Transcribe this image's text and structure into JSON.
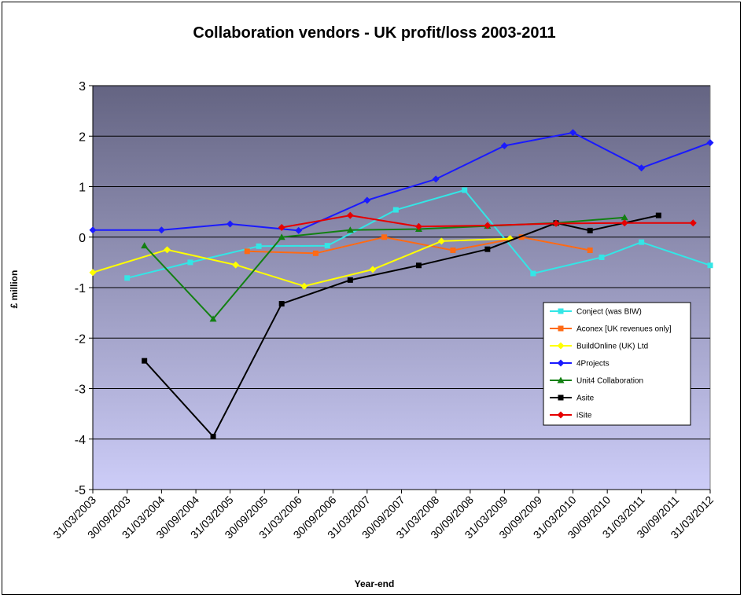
{
  "chart_data": {
    "type": "line",
    "title": "Collaboration vendors - UK profit/loss 2003-2011",
    "xlabel": "Year-end",
    "ylabel": "£ million",
    "ylim": [
      -5,
      3
    ],
    "yticks": [
      3,
      2,
      1,
      0,
      -1,
      -2,
      -3,
      -4,
      -5
    ],
    "x_range": [
      "31/03/2003",
      "31/03/2012"
    ],
    "x_ticks": [
      "31/03/2003",
      "30/09/2003",
      "31/03/2004",
      "30/09/2004",
      "31/03/2005",
      "30/09/2005",
      "31/03/2006",
      "30/09/2006",
      "31/03/2007",
      "30/09/2007",
      "31/03/2008",
      "30/09/2008",
      "31/03/2009",
      "30/09/2009",
      "31/03/2010",
      "30/09/2010",
      "31/03/2011",
      "30/09/2011",
      "31/03/2012"
    ],
    "grid": true,
    "legend_position": "right",
    "series": [
      {
        "name": "Conject (was BIW)",
        "color": "#33e6e6",
        "marker": "square",
        "points": [
          {
            "x": "30/09/2003",
            "y": -0.81
          },
          {
            "x": "31/08/2004",
            "y": -0.5
          },
          {
            "x": "31/08/2005",
            "y": -0.18
          },
          {
            "x": "31/08/2006",
            "y": -0.17
          },
          {
            "x": "31/08/2007",
            "y": 0.54
          },
          {
            "x": "31/08/2008",
            "y": 0.93
          },
          {
            "x": "31/08/2009",
            "y": -0.72
          },
          {
            "x": "31/08/2010",
            "y": -0.4
          },
          {
            "x": "31/03/2011",
            "y": -0.1
          },
          {
            "x": "31/03/2012",
            "y": -0.56
          }
        ]
      },
      {
        "name": "Aconex [UK revenues only]",
        "color": "#ff6a14",
        "marker": "square",
        "points": [
          {
            "x": "30/06/2005",
            "y": -0.28
          },
          {
            "x": "30/06/2006",
            "y": -0.32
          },
          {
            "x": "30/06/2007",
            "y": 0.0
          },
          {
            "x": "30/06/2008",
            "y": -0.26
          },
          {
            "x": "30/06/2009",
            "y": 0.0
          },
          {
            "x": "30/06/2010",
            "y": -0.26
          }
        ]
      },
      {
        "name": "BuildOnline (UK) Ltd",
        "color": "#ffff00",
        "marker": "diamond",
        "points": [
          {
            "x": "31/03/2003",
            "y": -0.7
          },
          {
            "x": "30/04/2004",
            "y": -0.25
          },
          {
            "x": "30/04/2005",
            "y": -0.55
          },
          {
            "x": "30/04/2006",
            "y": -0.97
          },
          {
            "x": "30/04/2007",
            "y": -0.64
          },
          {
            "x": "30/04/2008",
            "y": -0.08
          },
          {
            "x": "30/04/2009",
            "y": -0.03
          }
        ]
      },
      {
        "name": "4Projects",
        "color": "#1a1aff",
        "marker": "diamond",
        "points": [
          {
            "x": "31/03/2003",
            "y": 0.14
          },
          {
            "x": "31/03/2004",
            "y": 0.14
          },
          {
            "x": "31/03/2005",
            "y": 0.26
          },
          {
            "x": "31/03/2006",
            "y": 0.13
          },
          {
            "x": "31/03/2007",
            "y": 0.73
          },
          {
            "x": "31/03/2008",
            "y": 1.15
          },
          {
            "x": "31/03/2009",
            "y": 1.81
          },
          {
            "x": "31/03/2010",
            "y": 2.07
          },
          {
            "x": "31/03/2011",
            "y": 1.37
          },
          {
            "x": "31/03/2012",
            "y": 1.87
          }
        ]
      },
      {
        "name": "Unit4 Collaboration",
        "color": "#128012",
        "marker": "triangle",
        "points": [
          {
            "x": "31/12/2003",
            "y": -0.17
          },
          {
            "x": "31/12/2004",
            "y": -1.62
          },
          {
            "x": "31/12/2005",
            "y": 0.0
          },
          {
            "x": "31/12/2006",
            "y": 0.14
          },
          {
            "x": "31/12/2007",
            "y": 0.16
          },
          {
            "x": "31/12/2008",
            "y": 0.22
          },
          {
            "x": "31/12/2009",
            "y": 0.28
          },
          {
            "x": "31/12/2010",
            "y": 0.39
          }
        ]
      },
      {
        "name": "Asite",
        "color": "#000000",
        "marker": "square",
        "points": [
          {
            "x": "31/12/2003",
            "y": -2.45
          },
          {
            "x": "31/12/2004",
            "y": -3.95
          },
          {
            "x": "31/12/2005",
            "y": -1.32
          },
          {
            "x": "31/12/2006",
            "y": -0.85
          },
          {
            "x": "31/12/2007",
            "y": -0.56
          },
          {
            "x": "31/12/2008",
            "y": -0.24
          },
          {
            "x": "31/12/2009",
            "y": 0.28
          },
          {
            "x": "30/06/2010",
            "y": 0.13
          },
          {
            "x": "30/06/2011",
            "y": 0.43
          }
        ]
      },
      {
        "name": "iSite",
        "color": "#e60000",
        "marker": "diamond",
        "points": [
          {
            "x": "31/12/2005",
            "y": 0.19
          },
          {
            "x": "31/12/2006",
            "y": 0.43
          },
          {
            "x": "31/12/2007",
            "y": 0.21
          },
          {
            "x": "31/12/2008",
            "y": 0.23
          },
          {
            "x": "31/12/2009",
            "y": 0.27
          },
          {
            "x": "31/12/2010",
            "y": 0.28
          },
          {
            "x": "31/12/2011",
            "y": 0.28
          }
        ]
      }
    ]
  }
}
